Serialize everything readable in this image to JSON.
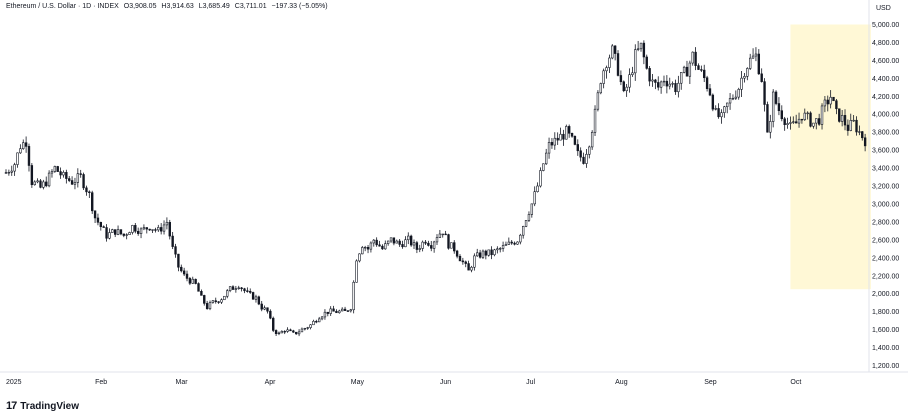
{
  "header": {
    "symbol": "Ethereum / U.S. Dollar · 1D · INDEX",
    "open": "O3,908.05",
    "high": "H3,914.63",
    "low": "L3,685.49",
    "close": "C3,711.01",
    "change": "−197.33 (−5.05%)"
  },
  "currency": "USD",
  "logo_text": "TradingView",
  "colors": {
    "candle": "#131722",
    "highlight": "#fff8d6",
    "axis_line": "#e0e3eb"
  },
  "chart_data": {
    "type": "candlestick",
    "ylim": [
      1150,
      5050
    ],
    "y_ticks": [
      1200,
      1400,
      1600,
      1800,
      2000,
      2200,
      2400,
      2600,
      2800,
      3000,
      3200,
      3400,
      3600,
      3800,
      4000,
      4200,
      4400,
      4600,
      4800,
      5000
    ],
    "y_tick_labels": [
      "1,200.00",
      "1,400.00",
      "1,600.00",
      "1,800.00",
      "2,000.00",
      "2,200.00",
      "2,400.00",
      "2,600.00",
      "2,800.00",
      "3,000.00",
      "3,200.00",
      "3,400.00",
      "3,600.00",
      "3,800.00",
      "4,000.00",
      "4,200.00",
      "4,400.00",
      "4,600.00",
      "4,800.00",
      "5,000.00"
    ],
    "x_labels": [
      {
        "label": "2025",
        "day": 0
      },
      {
        "label": "Feb",
        "day": 31
      },
      {
        "label": "Mar",
        "day": 59
      },
      {
        "label": "Apr",
        "day": 90
      },
      {
        "label": "May",
        "day": 120
      },
      {
        "label": "Jun",
        "day": 151
      },
      {
        "label": "Jul",
        "day": 181
      },
      {
        "label": "Aug",
        "day": 212
      },
      {
        "label": "Sep",
        "day": 243
      },
      {
        "label": "Oct",
        "day": 273
      }
    ],
    "x_range_days": [
      0,
      300
    ],
    "highlight": {
      "day_start": 273,
      "day_end": 301,
      "price_low": 2050,
      "price_high": 5000
    },
    "key_closes": [
      [
        0,
        3350
      ],
      [
        3,
        3450
      ],
      [
        5,
        3650
      ],
      [
        7,
        3700
      ],
      [
        9,
        3250
      ],
      [
        12,
        3180
      ],
      [
        14,
        3250
      ],
      [
        17,
        3400
      ],
      [
        20,
        3300
      ],
      [
        23,
        3250
      ],
      [
        26,
        3300
      ],
      [
        29,
        3100
      ],
      [
        31,
        2850
      ],
      [
        33,
        2750
      ],
      [
        35,
        2650
      ],
      [
        38,
        2700
      ],
      [
        41,
        2650
      ],
      [
        44,
        2750
      ],
      [
        47,
        2700
      ],
      [
        50,
        2750
      ],
      [
        53,
        2700
      ],
      [
        56,
        2800
      ],
      [
        58,
        2500
      ],
      [
        60,
        2300
      ],
      [
        62,
        2200
      ],
      [
        64,
        2150
      ],
      [
        66,
        2100
      ],
      [
        68,
        1950
      ],
      [
        70,
        1850
      ],
      [
        72,
        1900
      ],
      [
        75,
        1950
      ],
      [
        78,
        2050
      ],
      [
        81,
        2100
      ],
      [
        84,
        2000
      ],
      [
        87,
        1950
      ],
      [
        89,
        1850
      ],
      [
        91,
        1800
      ],
      [
        93,
        1600
      ],
      [
        95,
        1550
      ],
      [
        97,
        1600
      ],
      [
        100,
        1550
      ],
      [
        103,
        1600
      ],
      [
        106,
        1650
      ],
      [
        109,
        1750
      ],
      [
        112,
        1800
      ],
      [
        115,
        1800
      ],
      [
        118,
        1800
      ],
      [
        120,
        1850
      ],
      [
        122,
        2400
      ],
      [
        124,
        2550
      ],
      [
        126,
        2500
      ],
      [
        128,
        2600
      ],
      [
        131,
        2500
      ],
      [
        134,
        2600
      ],
      [
        137,
        2550
      ],
      [
        140,
        2600
      ],
      [
        143,
        2500
      ],
      [
        146,
        2600
      ],
      [
        148,
        2550
      ],
      [
        150,
        2650
      ],
      [
        152,
        2700
      ],
      [
        154,
        2550
      ],
      [
        156,
        2500
      ],
      [
        158,
        2400
      ],
      [
        160,
        2300
      ],
      [
        161,
        2250
      ],
      [
        163,
        2400
      ],
      [
        166,
        2450
      ],
      [
        169,
        2450
      ],
      [
        172,
        2500
      ],
      [
        175,
        2550
      ],
      [
        178,
        2600
      ],
      [
        181,
        2850
      ],
      [
        183,
        3000
      ],
      [
        185,
        3200
      ],
      [
        187,
        3450
      ],
      [
        189,
        3650
      ],
      [
        191,
        3700
      ],
      [
        193,
        3750
      ],
      [
        195,
        3800
      ],
      [
        197,
        3700
      ],
      [
        199,
        3550
      ],
      [
        201,
        3500
      ],
      [
        203,
        3700
      ],
      [
        205,
        4000
      ],
      [
        207,
        4400
      ],
      [
        209,
        4600
      ],
      [
        211,
        4700
      ],
      [
        213,
        4500
      ],
      [
        215,
        4200
      ],
      [
        217,
        4400
      ],
      [
        219,
        4650
      ],
      [
        221,
        4750
      ],
      [
        223,
        4500
      ],
      [
        225,
        4350
      ],
      [
        227,
        4300
      ],
      [
        229,
        4400
      ],
      [
        231,
        4350
      ],
      [
        233,
        4300
      ],
      [
        235,
        4400
      ],
      [
        237,
        4500
      ],
      [
        239,
        4650
      ],
      [
        241,
        4500
      ],
      [
        243,
        4400
      ],
      [
        245,
        4250
      ],
      [
        247,
        4000
      ],
      [
        249,
        3950
      ],
      [
        251,
        4100
      ],
      [
        253,
        4200
      ],
      [
        255,
        4300
      ],
      [
        257,
        4500
      ],
      [
        259,
        4600
      ],
      [
        261,
        4650
      ],
      [
        263,
        4400
      ],
      [
        265,
        3750
      ],
      [
        267,
        4200
      ],
      [
        269,
        4050
      ],
      [
        271,
        3950
      ],
      [
        273,
        3850
      ],
      [
        275,
        3900
      ],
      [
        277,
        4000
      ],
      [
        279,
        3950
      ],
      [
        281,
        3900
      ],
      [
        283,
        3950
      ],
      [
        285,
        4100
      ],
      [
        287,
        4200
      ],
      [
        289,
        4000
      ],
      [
        291,
        3950
      ],
      [
        293,
        3850
      ],
      [
        295,
        3900
      ],
      [
        297,
        3800
      ],
      [
        299,
        3711
      ]
    ],
    "last_close": 3711.01
  }
}
